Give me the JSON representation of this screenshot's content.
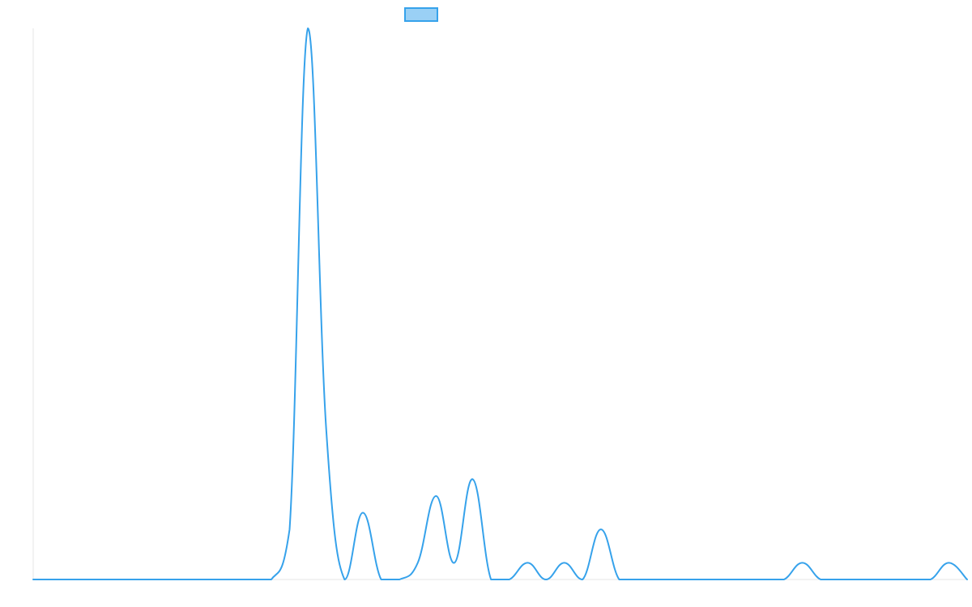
{
  "chart_data": {
    "type": "line",
    "title": "",
    "xlabel": "",
    "ylabel": "",
    "grid": false,
    "legend": {
      "position": "top-center"
    },
    "x": [
      0,
      1,
      2,
      3,
      4,
      5,
      6,
      7,
      8,
      9,
      10,
      11,
      12,
      13,
      14,
      15,
      16,
      17,
      18,
      19,
      20,
      21,
      22,
      23,
      24,
      25,
      26,
      27,
      28,
      29,
      30,
      31,
      32,
      33,
      34,
      35,
      36,
      37,
      38,
      39,
      40,
      41,
      42,
      43,
      44,
      45,
      46,
      47,
      48,
      49,
      50,
      51
    ],
    "xlim": [
      0,
      51
    ],
    "ylim": [
      0,
      33
    ],
    "series": [
      {
        "color": "#36a2eb",
        "fill": "#9ad0f5",
        "values": [
          0,
          0,
          0,
          0,
          0,
          0,
          0,
          0,
          0,
          0,
          0,
          0,
          0,
          0,
          3,
          33,
          9,
          0,
          4,
          0,
          0,
          1,
          5,
          1,
          6,
          0,
          0,
          1,
          0,
          1,
          0,
          3,
          0,
          0,
          0,
          0,
          0,
          0,
          0,
          0,
          0,
          0,
          1,
          0,
          0,
          0,
          0,
          0,
          0,
          0,
          1,
          0
        ]
      }
    ]
  }
}
